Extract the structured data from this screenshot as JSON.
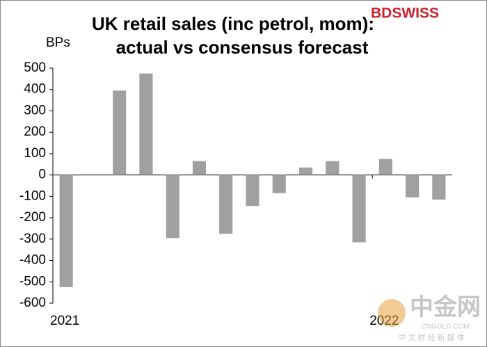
{
  "chart_data": {
    "type": "bar",
    "title": [
      "UK retail sales (inc petrol, mom):",
      "actual vs consensus forecast"
    ],
    "y_label": "BPs",
    "brand": "BDSWISS",
    "watermark": {
      "main": "中金网",
      "site": "CNGOLD.COM",
      "tagline": "中 文 财 经 新 媒 体"
    },
    "categories": [
      "2021",
      null,
      null,
      null,
      null,
      null,
      null,
      null,
      null,
      null,
      null,
      null,
      "2022",
      null,
      null
    ],
    "values": [
      -525,
      null,
      395,
      475,
      -295,
      65,
      -275,
      -145,
      -85,
      35,
      65,
      -315,
      75,
      -105,
      -115
    ],
    "color": "#a0a0a0",
    "ylim": [
      -600,
      500
    ],
    "yticks": [
      -600,
      -500,
      -400,
      -300,
      -200,
      -100,
      0,
      100,
      200,
      300,
      400,
      500
    ]
  }
}
